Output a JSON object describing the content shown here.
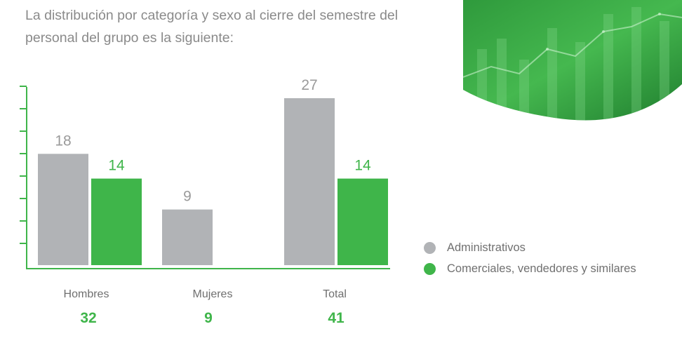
{
  "intro_text": "La distribución por categoría y sexo al cierre del semestre del personal del grupo es la siguiente:",
  "colors": {
    "administrativos": "#b1b3b6",
    "comerciales": "#3fb54a",
    "axis": "#3fb54a",
    "text": "#8a8a8a"
  },
  "decoration": {
    "icon": "green-finance-photo-curve"
  },
  "chart_data": {
    "type": "bar",
    "title": "",
    "xlabel": "",
    "ylabel": "",
    "ylim": [
      0,
      33
    ],
    "categories": [
      "Hombres",
      "Mujeres",
      "Total"
    ],
    "totals": [
      32,
      9,
      41
    ],
    "series": [
      {
        "name": "Administrativos",
        "values": [
          18,
          9,
          27
        ],
        "color": "#b1b3b6",
        "value_labels": [
          "18",
          "9",
          "27"
        ]
      },
      {
        "name": "Comerciales, vendedores y similares",
        "values": [
          14,
          null,
          14
        ],
        "color": "#3fb54a",
        "value_labels": [
          "14",
          "",
          "14"
        ]
      }
    ],
    "legend_position": "right",
    "grid": false
  }
}
